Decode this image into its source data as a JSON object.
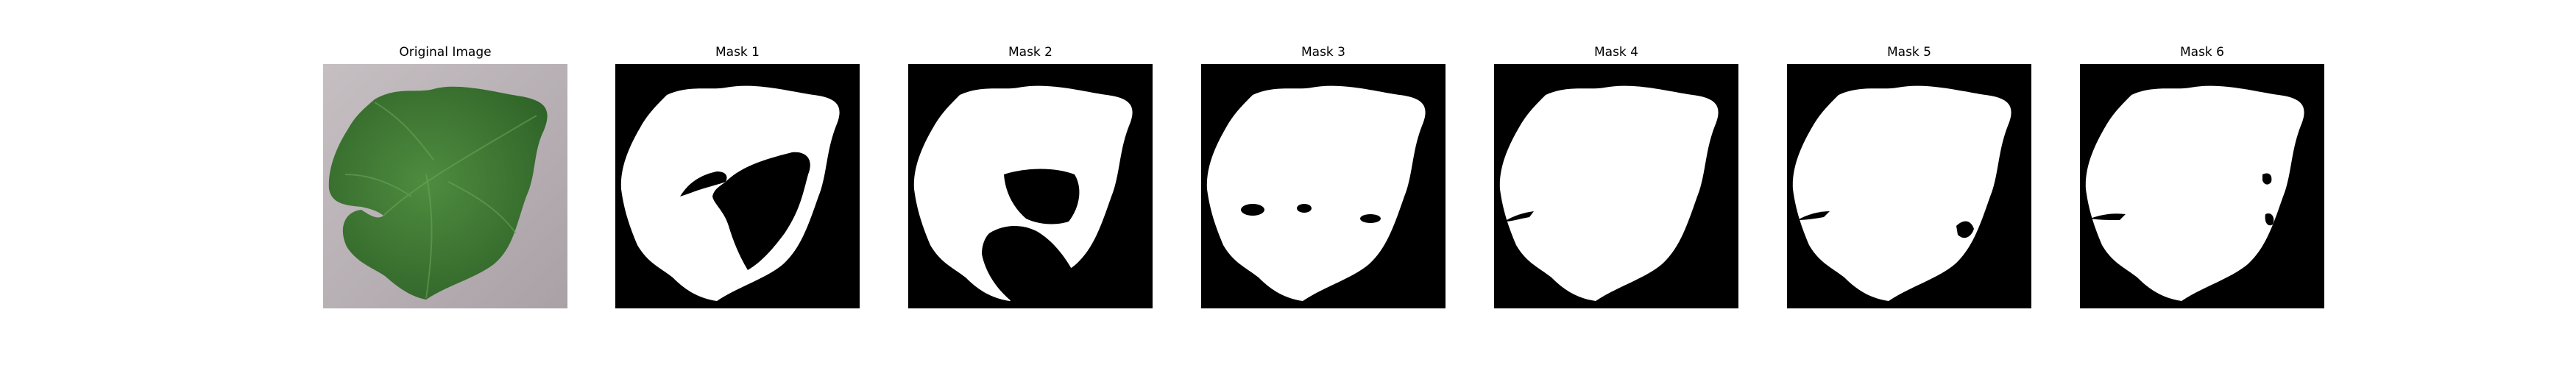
{
  "figure": {
    "panels": [
      {
        "title": "Original Image",
        "image": "leaf-photo"
      },
      {
        "title": "Mask 1",
        "image": "segmentation-mask"
      },
      {
        "title": "Mask 2",
        "image": "segmentation-mask"
      },
      {
        "title": "Mask 3",
        "image": "segmentation-mask"
      },
      {
        "title": "Mask 4",
        "image": "segmentation-mask"
      },
      {
        "title": "Mask 5",
        "image": "segmentation-mask"
      },
      {
        "title": "Mask 6",
        "image": "segmentation-mask"
      }
    ]
  },
  "colors": {
    "background": "#000000",
    "mask": "#ffffff",
    "leaf": "#3f7a34",
    "photo_background": "#b8b0b4"
  }
}
